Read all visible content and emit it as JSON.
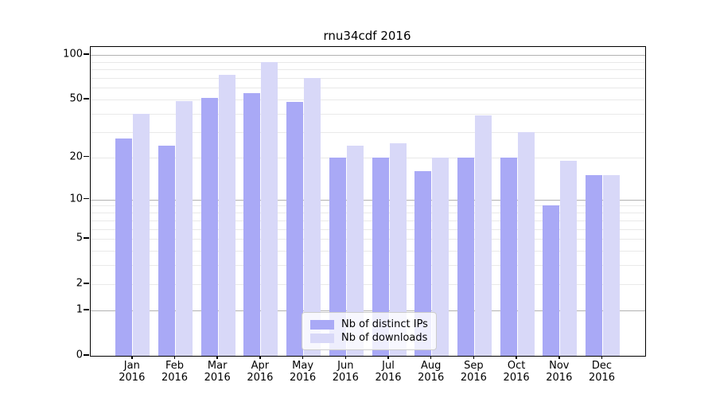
{
  "chart_data": {
    "type": "bar",
    "title": "rnu34cdf 2016",
    "y_scale": "log1p",
    "ylim": [
      0,
      113
    ],
    "grid": "on",
    "legend_position": "lower center",
    "categories": [
      "Jan",
      "Feb",
      "Mar",
      "Apr",
      "May",
      "Jun",
      "Jul",
      "Aug",
      "Sep",
      "Oct",
      "Nov",
      "Dec"
    ],
    "year_label": "2016",
    "series": [
      {
        "name": "Nb of distinct IPs",
        "color": "#a9a9f6",
        "values": [
          27,
          24,
          51,
          55,
          48,
          20,
          20,
          16,
          20,
          20,
          9,
          15
        ]
      },
      {
        "name": "Nb of downloads",
        "color": "#d8d8f8",
        "values": [
          40,
          49,
          73,
          89,
          70,
          24,
          25,
          20,
          39,
          30,
          19,
          15
        ]
      }
    ],
    "y_ticks": [
      0,
      1,
      2,
      5,
      10,
      20,
      50,
      100
    ],
    "minor_gridlines": [
      2,
      3,
      4,
      5,
      6,
      7,
      8,
      9,
      20,
      30,
      40,
      50,
      60,
      70,
      80,
      90
    ],
    "major_gridlines": [
      1,
      10,
      100
    ]
  }
}
